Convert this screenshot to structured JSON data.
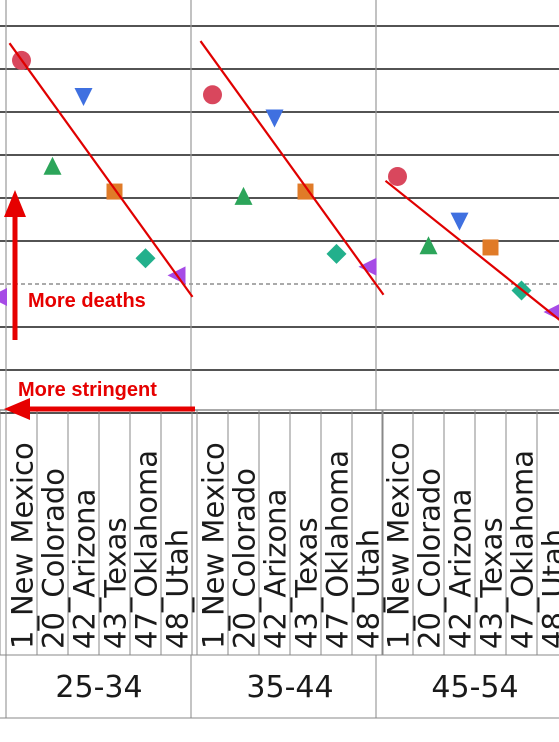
{
  "chart_data": {
    "type": "scatter",
    "y_grid_lines": 9,
    "reference_line": "dashed",
    "groups": [
      {
        "name": "25-34",
        "categories": [
          "1_New Mexico",
          "20_Colorado",
          "42_Arizona",
          "43_Texas",
          "47_Oklahoma",
          "48_Utah"
        ],
        "values": [
          8.2,
          5.75,
          7.35,
          5.15,
          3.6,
          3.2
        ],
        "trend": [
          8.6,
          2.7
        ]
      },
      {
        "name": "35-44",
        "categories": [
          "1_New Mexico",
          "20_Colorado",
          "42_Arizona",
          "43_Texas",
          "47_Oklahoma",
          "48_Utah"
        ],
        "values": [
          7.4,
          5.05,
          6.85,
          5.15,
          3.7,
          3.4
        ],
        "trend": [
          8.65,
          2.75
        ]
      },
      {
        "name": "45-54",
        "categories": [
          "1_New Mexico",
          "20_Colorado",
          "42_Arizona",
          "43_Texas",
          "47_Oklahoma",
          "48_Utah"
        ],
        "values": [
          5.5,
          3.9,
          4.45,
          3.85,
          2.85,
          2.35
        ],
        "trend": [
          5.4,
          2.0
        ]
      }
    ],
    "series_markers": [
      {
        "category": "1_New Mexico",
        "shape": "circle",
        "color": "#d9475d"
      },
      {
        "category": "20_Colorado",
        "shape": "triangle-up",
        "color": "#2ca55a"
      },
      {
        "category": "42_Arizona",
        "shape": "triangle-down",
        "color": "#3f70e0"
      },
      {
        "category": "43_Texas",
        "shape": "square",
        "color": "#e07b28"
      },
      {
        "category": "47_Oklahoma",
        "shape": "diamond",
        "color": "#22b08c"
      },
      {
        "category": "48_Utah",
        "shape": "triangle-left",
        "color": "#a64be6"
      }
    ],
    "partial_left": {
      "tick_label": "48_Utah",
      "marker": "triangle-left"
    },
    "annotations": [
      {
        "text": "More deaths",
        "arrow": "up",
        "color": "#e60000"
      },
      {
        "text": "More stringent",
        "arrow": "left",
        "color": "#e60000"
      }
    ],
    "trend_color": "#e00000"
  }
}
